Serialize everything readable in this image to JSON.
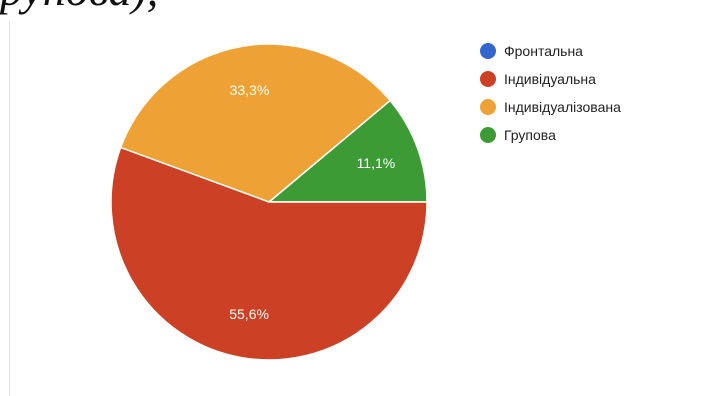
{
  "top_text": "рупова),",
  "chart_data": {
    "type": "pie",
    "categories": [
      "Фронтальна",
      "Індивідуальна",
      "Індивідуалізована",
      "Групова"
    ],
    "values": [
      0,
      55.6,
      33.3,
      11.1
    ],
    "labels": [
      "",
      "55,6%",
      "33,3%",
      "11,1%"
    ],
    "colors": [
      "#3366cc",
      "#cc4125",
      "#eea236",
      "#3c9b35"
    ],
    "legend_position": "right"
  }
}
